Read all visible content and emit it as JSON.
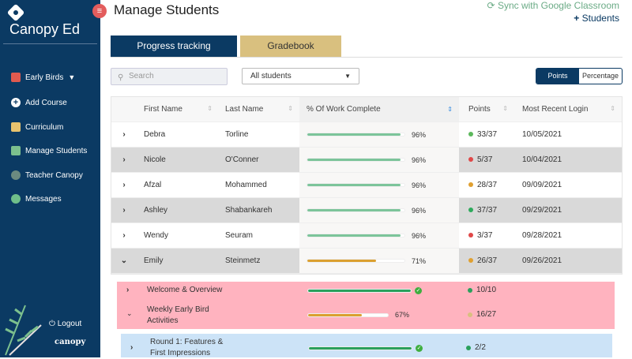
{
  "sidebar": {
    "brand": "Canopy Ed",
    "course": "Early Birds",
    "items": [
      "Add Course",
      "Curriculum",
      "Manage Students",
      "Teacher Canopy",
      "Messages"
    ],
    "logout": "Logout",
    "footer_logo": "canopy"
  },
  "header": {
    "title": "Manage Students",
    "sync": "Sync with Google Classroom",
    "students": "Students"
  },
  "tabs": [
    "Progress tracking",
    "Gradebook"
  ],
  "controls": {
    "search_placeholder": "Search",
    "filter": "All students",
    "toggle": [
      "Points",
      "Percentage"
    ]
  },
  "table": {
    "headers": [
      "First Name",
      "Last Name",
      "% Of Work Complete",
      "Points",
      "Most Recent Login"
    ],
    "rows": [
      {
        "first": "Debra",
        "last": "Torline",
        "pct": "96%",
        "pct_value": 96,
        "points": "33/37",
        "status": "#5cb85c",
        "login": "10/05/2021"
      },
      {
        "first": "Nicole",
        "last": "O'Conner",
        "pct": "96%",
        "pct_value": 96,
        "points": "5/37",
        "status": "#e04848",
        "login": "10/04/2021"
      },
      {
        "first": "Afzal",
        "last": "Mohammed",
        "pct": "96%",
        "pct_value": 96,
        "points": "28/37",
        "status": "#e0a030",
        "login": "09/09/2021"
      },
      {
        "first": "Ashley",
        "last": "Shabankareh",
        "pct": "96%",
        "pct_value": 96,
        "points": "37/37",
        "status": "#2eaa5c",
        "login": "09/29/2021"
      },
      {
        "first": "Wendy",
        "last": "Seuram",
        "pct": "96%",
        "pct_value": 96,
        "points": "3/37",
        "status": "#e04848",
        "login": "09/28/2021"
      },
      {
        "first": "Emily",
        "last": "Steinmetz",
        "pct": "71%",
        "pct_value": 71,
        "points": "26/37",
        "status": "#e0a030",
        "login": "09/26/2021"
      }
    ]
  },
  "expanded": [
    {
      "title": "Welcome & Overview",
      "pct_value": 100,
      "points": "10/10"
    },
    {
      "title_l1": "Weekly Early Bird",
      "title_l2": "Activities",
      "pct": "67%",
      "pct_value": 67,
      "points": "16/27"
    },
    {
      "title_l1": "Round 1: Features &",
      "title_l2": "First Impressions",
      "pct_value": 100,
      "points": "2/2"
    }
  ]
}
